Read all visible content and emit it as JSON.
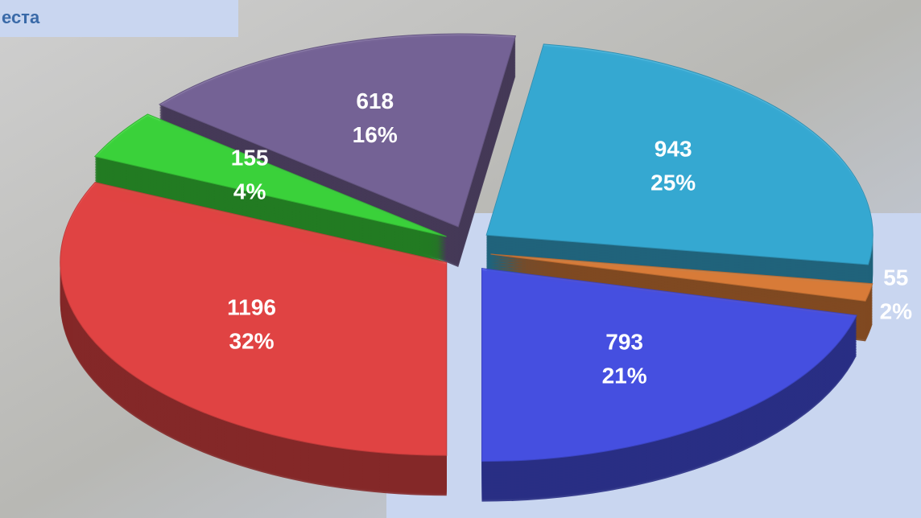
{
  "chart_data": {
    "type": "pie3d",
    "title": "еста",
    "categories": [
      null,
      null,
      null,
      null,
      null,
      null
    ],
    "values": [
      1196,
      155,
      618,
      943,
      55,
      793
    ],
    "percents": [
      32,
      4,
      16,
      25,
      2,
      21
    ],
    "percent_labels": [
      "32%",
      "4%",
      "16%",
      "25%",
      "2%",
      "21%"
    ],
    "colors": [
      "#f04848",
      "#3ee03e",
      "#7d6aa0",
      "#3ab4e0",
      "#e8843c",
      "#4a55f0"
    ],
    "exploded": true
  }
}
